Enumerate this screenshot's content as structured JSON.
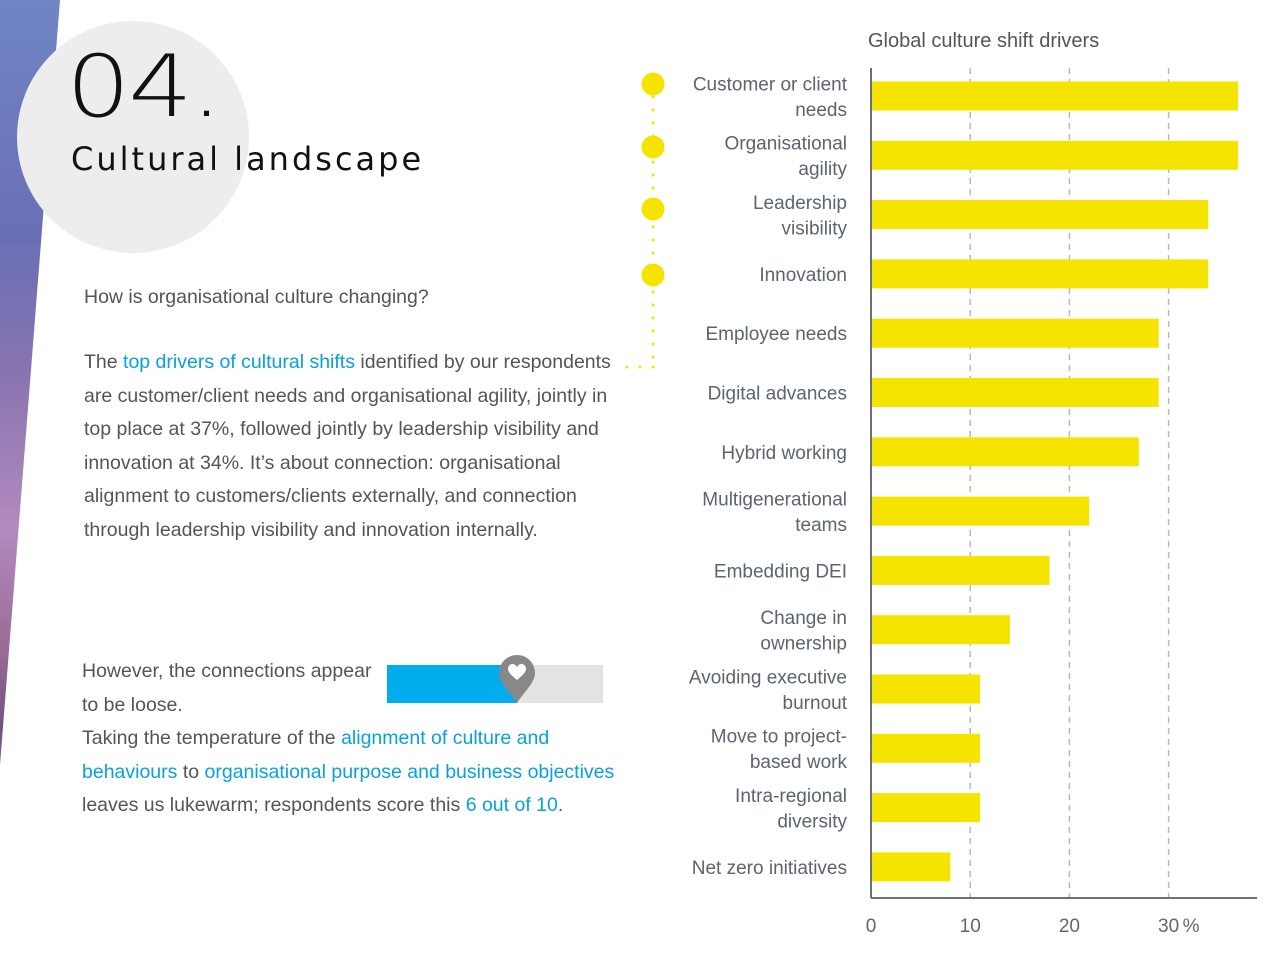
{
  "section": {
    "number": "04.",
    "title": "Cultural landscape"
  },
  "intro": {
    "question": "How is organisational culture changing?",
    "p1_a": "The ",
    "p1_link": "top drivers of cultural shifts",
    "p1_b": " identified by our respondents are customer/client needs and organisational agility, jointly in top place at 37%, followed jointly by leadership visibility and innovation at 34%. It’s about connection: organisational alignment to customers/clients externally, and connection through leadership visibility and innovation internally.",
    "p2_a": "However, the connections appear to be loose.",
    "p2_b": "Taking the temperature of the ",
    "p2_link1": "alignment of culture and behaviours",
    "p2_c": " to ",
    "p2_link2": "organisational purpose and business objectives",
    "p2_d": " leaves us lukewarm; respondents score this ",
    "p2_link3": "6 out of 10",
    "p2_e": "."
  },
  "meter": {
    "score": 6,
    "max": 10,
    "icon": "heart-pin-icon",
    "fill_color": "#02adee",
    "track_color": "#e3e3e3",
    "pin_color": "#888888"
  },
  "colors": {
    "bar": "#f5e400",
    "accent": "#0aa0dc",
    "text": "#555555"
  },
  "chart_data": {
    "type": "bar",
    "orientation": "horizontal",
    "title": "Global culture shift drivers",
    "xlabel": "",
    "ylabel": "",
    "x_unit": "%",
    "xlim": [
      0,
      39
    ],
    "x_ticks": [
      0,
      10,
      20,
      30
    ],
    "x_tick_labels": [
      "0",
      "10",
      "20",
      "30"
    ],
    "grid": "vertical dashed",
    "categories": [
      [
        "Customer or client",
        "needs"
      ],
      [
        "Organisational",
        "agility"
      ],
      [
        "Leadership",
        "visibility"
      ],
      [
        "Innovation"
      ],
      [
        "Employee needs"
      ],
      [
        "Digital advances"
      ],
      [
        "Hybrid working"
      ],
      [
        "Multigenerational",
        "teams"
      ],
      [
        "Embedding DEI"
      ],
      [
        "Change in",
        "ownership"
      ],
      [
        "Avoiding executive",
        "burnout"
      ],
      [
        "Move to project-",
        "based work"
      ],
      [
        "Intra-regional",
        "diversity"
      ],
      [
        "Net zero initiatives"
      ]
    ],
    "values": [
      37,
      37,
      34,
      34,
      29,
      29,
      27,
      22,
      18,
      14,
      11,
      11,
      11,
      8
    ],
    "highlighted": [
      0,
      1,
      2,
      3
    ]
  }
}
